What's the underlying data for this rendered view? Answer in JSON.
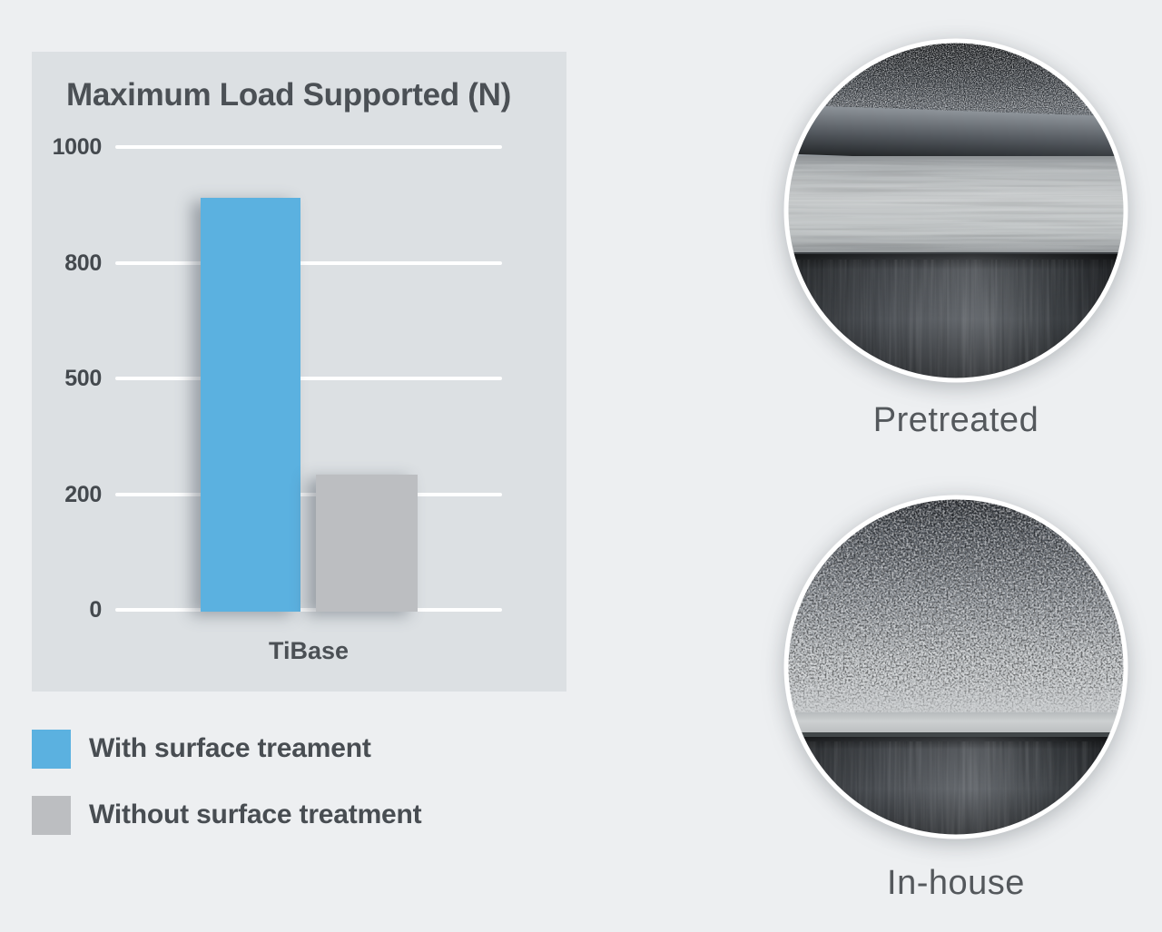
{
  "canvas_background": "#edeff1",
  "text_color": "#484d52",
  "chart_data": {
    "type": "bar",
    "title": "Maximum Load Supported (N)",
    "categories": [
      "TiBase"
    ],
    "series": [
      {
        "name": "With surface treament",
        "color": "#5bb1e0",
        "values": [
          915
        ]
      },
      {
        "name": "Without surface treatment",
        "color": "#bcbec1",
        "values": [
          255
        ]
      }
    ],
    "y_ticks": [
      0,
      200,
      500,
      800,
      1000
    ],
    "ylim": [
      0,
      1000
    ],
    "y_tick_spacing": "equal spacing between ticks (non-linear axis)",
    "grid": true,
    "gridline_color": "#ffffff",
    "panel_background": "#dce0e3",
    "legend_position": "below chart, outside panel, left-aligned",
    "xlabel": "",
    "ylabel": ""
  },
  "photos": [
    {
      "label": "Pretreated",
      "description": "macro photo of titanium base: sandblasted dark top, bright brushed band, dark brushed bottom"
    },
    {
      "label": "In-house",
      "description": "macro photo of titanium base: coarse sandblasted grain over bright band and dark brushed bottom"
    }
  ]
}
